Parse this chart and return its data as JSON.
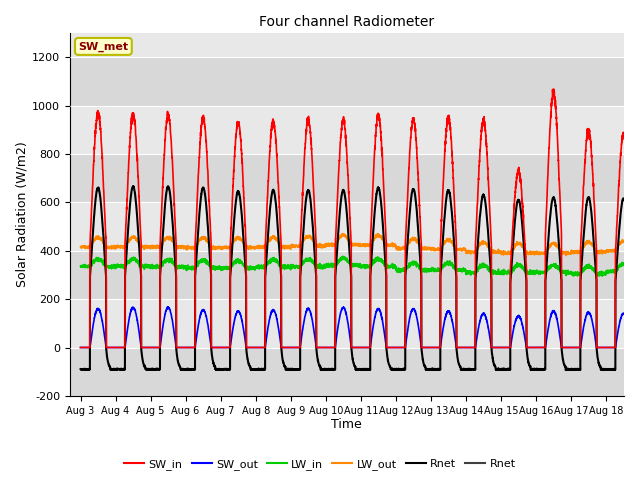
{
  "title": "Four channel Radiometer",
  "xlabel": "Time",
  "ylabel": "Solar Radiation (W/m2)",
  "ylim": [
    -200,
    1300
  ],
  "xlim": [
    -0.3,
    15.5
  ],
  "background_color": "#ffffff",
  "plot_bg_color": "#e0e0e0",
  "annotation_text": "SW_met",
  "annotation_bg": "#ffffcc",
  "annotation_border": "#bbbb00",
  "annotation_text_color": "#880000",
  "xtick_labels": [
    "Aug 3",
    "Aug 4",
    "Aug 5",
    "Aug 6",
    "Aug 7",
    "Aug 8",
    "Aug 9",
    "Aug 10",
    "Aug 11",
    "Aug 12",
    "Aug 13",
    "Aug 14",
    "Aug 15",
    "Aug 16",
    "Aug 17",
    "Aug 18"
  ],
  "xtick_positions": [
    0,
    1,
    2,
    3,
    4,
    5,
    6,
    7,
    8,
    9,
    10,
    11,
    12,
    13,
    14,
    15
  ],
  "ytick_labels": [
    "-200",
    "0",
    "200",
    "400",
    "600",
    "800",
    "1000",
    "1200"
  ],
  "ytick_positions": [
    -200,
    0,
    200,
    400,
    600,
    800,
    1000,
    1200
  ],
  "legend_entries": [
    "SW_in",
    "SW_out",
    "LW_in",
    "LW_out",
    "Rnet",
    "Rnet"
  ],
  "legend_colors": [
    "#ff0000",
    "#0000ff",
    "#00cc00",
    "#ff8800",
    "#000000",
    "#404040"
  ],
  "num_days": 16,
  "SW_in_peak": [
    970,
    965,
    960,
    950,
    930,
    935,
    940,
    940,
    960,
    945,
    950,
    940,
    730,
    1055,
    900,
    880
  ],
  "SW_out_peak": [
    160,
    165,
    165,
    155,
    150,
    155,
    160,
    165,
    160,
    160,
    150,
    140,
    130,
    150,
    145,
    140
  ],
  "LW_in_base": [
    335,
    335,
    333,
    330,
    328,
    333,
    335,
    340,
    335,
    320,
    320,
    310,
    310,
    310,
    305,
    315
  ],
  "LW_out_base": [
    415,
    415,
    415,
    413,
    413,
    415,
    420,
    425,
    423,
    410,
    405,
    395,
    390,
    390,
    395,
    400
  ],
  "Rnet_peak": [
    660,
    665,
    665,
    660,
    645,
    650,
    650,
    650,
    660,
    655,
    650,
    630,
    610,
    620,
    620,
    615
  ],
  "Rnet_night": [
    -90,
    -90,
    -90,
    -90,
    -90,
    -90,
    -90,
    -90,
    -90,
    -90,
    -90,
    -90,
    -90,
    -90,
    -90,
    -90
  ],
  "grid_bg_light": "#e8e8e8",
  "grid_bg_dark": "#d8d8d8"
}
